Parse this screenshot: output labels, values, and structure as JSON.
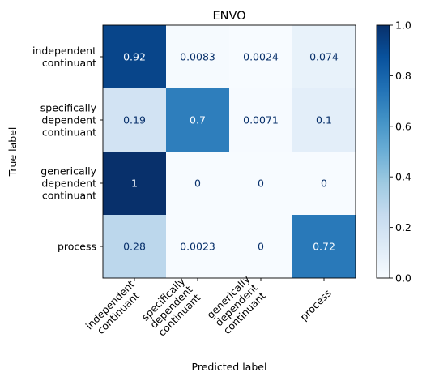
{
  "chart_data": {
    "type": "heatmap",
    "title": "ENVO",
    "xlabel": "Predicted label",
    "ylabel": "True label",
    "row_labels": [
      [
        "independent",
        "continuant"
      ],
      [
        "specifically",
        "dependent",
        "continuant"
      ],
      [
        "generically",
        "dependent",
        "continuant"
      ],
      [
        "process"
      ]
    ],
    "col_labels": [
      [
        "independent",
        "continuant"
      ],
      [
        "specifically",
        "dependent",
        "continuant"
      ],
      [
        "generically",
        "dependent",
        "continuant"
      ],
      [
        "process"
      ]
    ],
    "values": [
      [
        0.92,
        0.0083,
        0.0024,
        0.074
      ],
      [
        0.19,
        0.7,
        0.0071,
        0.1
      ],
      [
        1,
        0,
        0,
        0
      ],
      [
        0.28,
        0.0023,
        0,
        0.72
      ]
    ],
    "value_labels": [
      [
        "0.92",
        "0.0083",
        "0.0024",
        "0.074"
      ],
      [
        "0.19",
        "0.7",
        "0.0071",
        "0.1"
      ],
      [
        "1",
        "0",
        "0",
        "0"
      ],
      [
        "0.28",
        "0.0023",
        "0",
        "0.72"
      ]
    ],
    "colormap": "Blues",
    "vmin": 0,
    "vmax": 1,
    "colorbar_ticks": [
      {
        "value": 0,
        "label": "0.0"
      },
      {
        "value": 0.2,
        "label": "0.2"
      },
      {
        "value": 0.4,
        "label": "0.4"
      },
      {
        "value": 0.6,
        "label": "0.6"
      },
      {
        "value": 0.8,
        "label": "0.8"
      },
      {
        "value": 1,
        "label": "1.0"
      }
    ]
  }
}
